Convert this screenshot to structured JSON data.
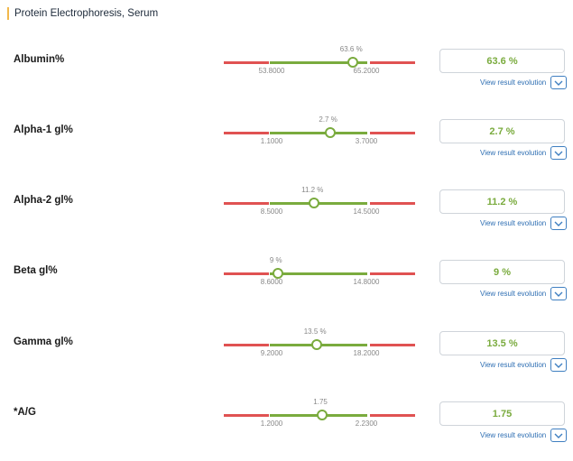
{
  "header": {
    "title": "Protein Electrophoresis, Serum"
  },
  "evolution_label": "View result evolution",
  "colors": {
    "out_of_range": "#e05252",
    "in_range": "#7aab3e",
    "link": "#2f6fb3",
    "header_accent": "#f2b84b"
  },
  "tests": [
    {
      "name": "Albumin%",
      "value_display": "63.6 %",
      "value": 63.6,
      "min": "53.8000",
      "max": "65.2000",
      "min_num": 53.8,
      "max_num": 65.2
    },
    {
      "name": "Alpha-1 gl%",
      "value_display": "2.7 %",
      "value": 2.7,
      "min": "1.1000",
      "max": "3.7000",
      "min_num": 1.1,
      "max_num": 3.7
    },
    {
      "name": "Alpha-2 gl%",
      "value_display": "11.2 %",
      "value": 11.2,
      "min": "8.5000",
      "max": "14.5000",
      "min_num": 8.5,
      "max_num": 14.5
    },
    {
      "name": "Beta gl%",
      "value_display": "9 %",
      "value": 9,
      "min": "8.6000",
      "max": "14.8000",
      "min_num": 8.6,
      "max_num": 14.8
    },
    {
      "name": "Gamma gl%",
      "value_display": "13.5 %",
      "value": 13.5,
      "min": "9.2000",
      "max": "18.2000",
      "min_num": 9.2,
      "max_num": 18.2
    },
    {
      "name": "*A/G",
      "value_display": "1.75",
      "value": 1.75,
      "min": "1.2000",
      "max": "2.2300",
      "min_num": 1.2,
      "max_num": 2.23
    }
  ]
}
